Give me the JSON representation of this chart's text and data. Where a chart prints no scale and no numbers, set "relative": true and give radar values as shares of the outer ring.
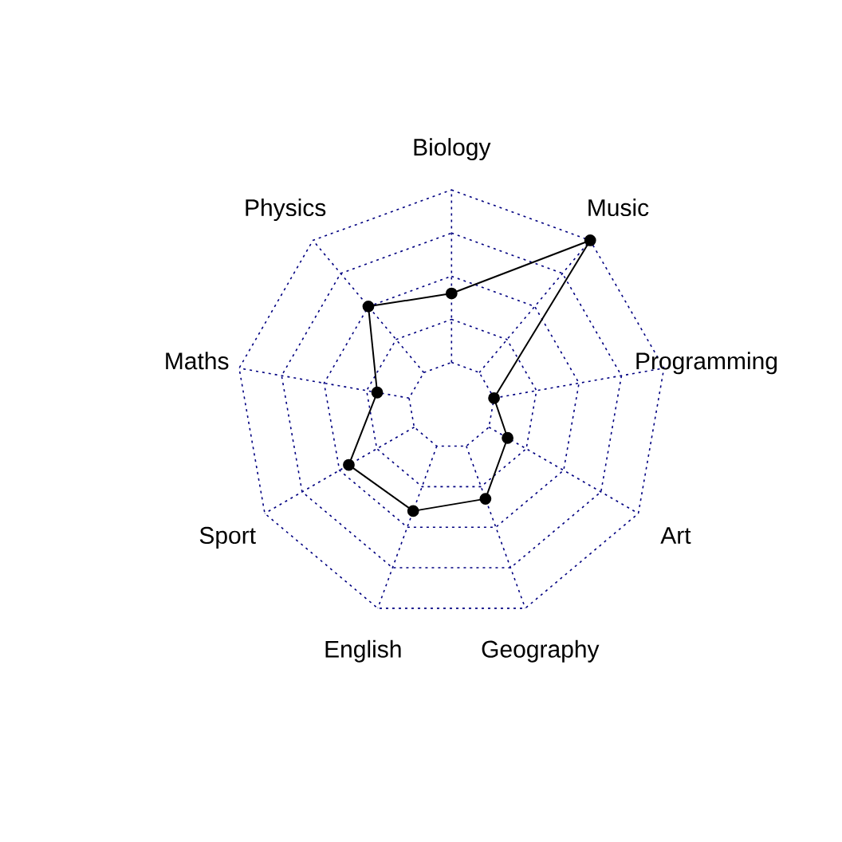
{
  "chart_data": {
    "type": "radar",
    "relative": true,
    "categories": [
      "Biology",
      "Music",
      "Programming",
      "Art",
      "Geography",
      "English",
      "Sport",
      "Maths",
      "Physics"
    ],
    "series": [
      {
        "color": "#000000",
        "values": [
          0.52,
          1.0,
          0.2,
          0.3,
          0.46,
          0.52,
          0.55,
          0.35,
          0.6
        ]
      }
    ],
    "grid": true,
    "marker": "circle",
    "line_style": "solid"
  }
}
